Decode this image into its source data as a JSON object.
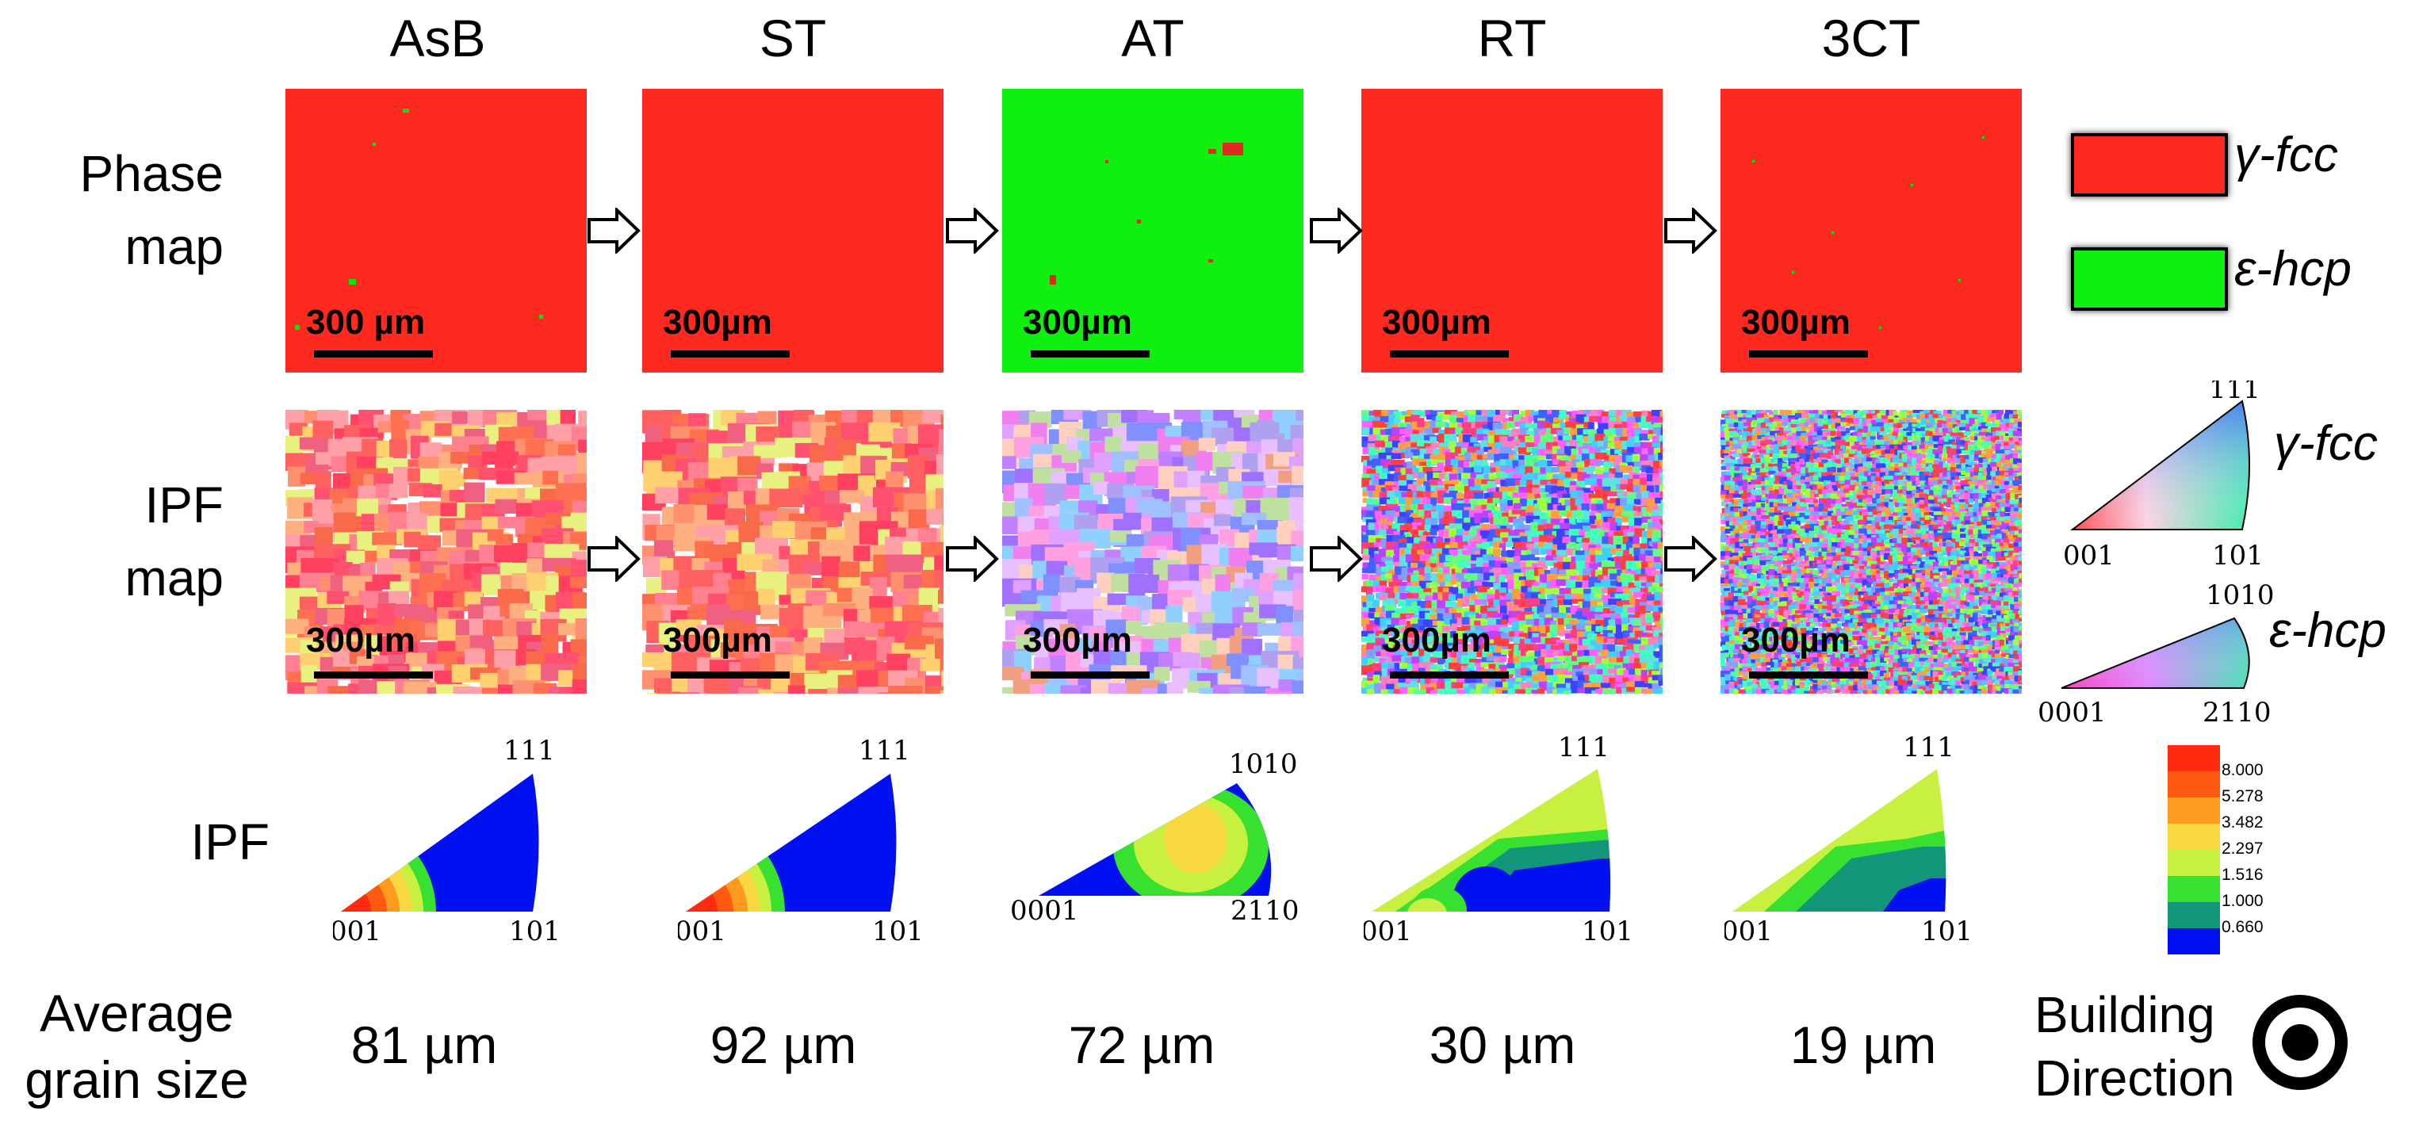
{
  "columns": [
    {
      "title": "AsB",
      "phase_scale": "300 µm",
      "ipf_scale": "300µm",
      "grain_size": "81 µm"
    },
    {
      "title": "ST",
      "phase_scale": "300µm",
      "ipf_scale": "300µm",
      "grain_size": "92 µm"
    },
    {
      "title": "AT",
      "phase_scale": "300µm",
      "ipf_scale": "300µm",
      "grain_size": "72 µm"
    },
    {
      "title": "RT",
      "phase_scale": "300µm",
      "ipf_scale": "300µm",
      "grain_size": "30 µm"
    },
    {
      "title": "3CT",
      "phase_scale": "300µm",
      "ipf_scale": "300µm",
      "grain_size": "19 µm"
    }
  ],
  "row_labels": {
    "phase_line1": "Phase",
    "phase_line2": "map",
    "ipfmap_line1": "IPF",
    "ipfmap_line2": "map",
    "ipf": "IPF",
    "grain_line1": "Average",
    "grain_line2": "grain size"
  },
  "phase_legend": [
    {
      "label": "γ-fcc",
      "color": "#ff2a1f"
    },
    {
      "label": "ε-hcp",
      "color": "#10f010"
    }
  ],
  "ipf_key": {
    "fcc": {
      "label": "γ-fcc",
      "corner_origin": "001",
      "corner_right": "101",
      "corner_top": "111"
    },
    "hcp": {
      "label": "ε-hcp",
      "corner_origin": "0001",
      "corner_right": "2110",
      "corner_top": "1010"
    }
  },
  "ipf_triangles": [
    {
      "origin": "001",
      "right": "101",
      "top": "111"
    },
    {
      "origin": "001",
      "right": "101",
      "top": "111"
    },
    {
      "origin": "0001",
      "right": "2110",
      "top": "1010"
    },
    {
      "origin": "001",
      "right": "101",
      "top": "111"
    },
    {
      "origin": "001",
      "right": "101",
      "top": "111"
    }
  ],
  "colorbar": {
    "levels": [
      "8.000",
      "5.278",
      "3.482",
      "2.297",
      "1.516",
      "1.000",
      "0.660"
    ],
    "colors": [
      "#ff2a10",
      "#ff5a10",
      "#ff9a20",
      "#f8d840",
      "#c8f040",
      "#38e030",
      "#13967a",
      "#0010f0"
    ]
  },
  "building_direction": {
    "line1": "Building",
    "line2": "Direction"
  }
}
